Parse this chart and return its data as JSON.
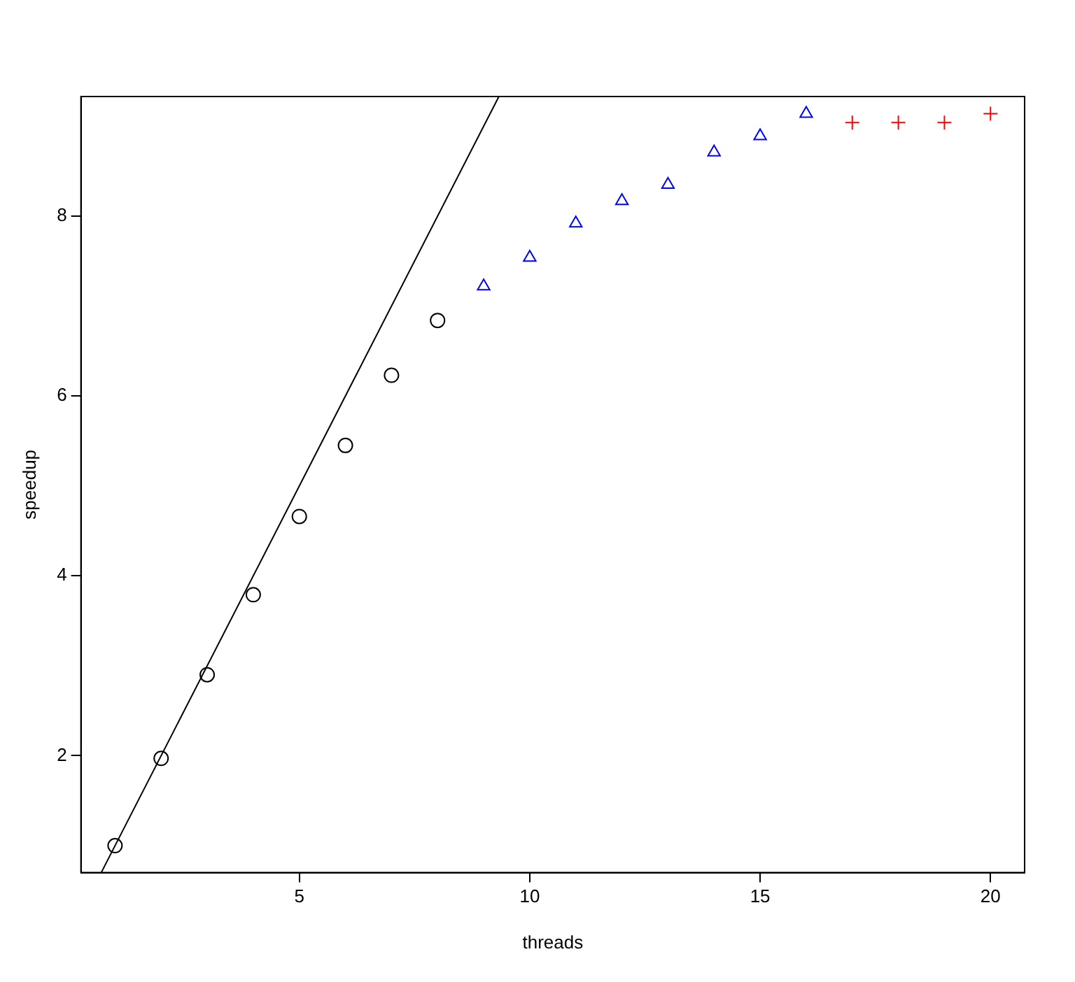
{
  "chart_data": {
    "type": "scatter",
    "xlabel": "threads",
    "ylabel": "speedup",
    "xlim": [
      0.26,
      20.74
    ],
    "ylim": [
      0.7,
      9.33
    ],
    "xticks": [
      5,
      10,
      15,
      20
    ],
    "yticks": [
      2,
      4,
      6,
      8
    ],
    "grid": false,
    "legend": false,
    "series": [
      {
        "type": "line",
        "color": "#000000",
        "marker": "none",
        "line_style": "solid",
        "x": [
          0.7,
          9.33
        ],
        "values": [
          0.7,
          9.33
        ]
      },
      {
        "color": "#000000",
        "marker": "circle",
        "x": [
          1,
          2,
          3,
          4,
          5,
          6,
          7,
          8
        ],
        "values": [
          1.0,
          1.97,
          2.9,
          3.79,
          4.66,
          5.45,
          6.23,
          6.84
        ]
      },
      {
        "color": "#0000ff",
        "marker": "triangle",
        "x": [
          9,
          10,
          11,
          12,
          13,
          14,
          15,
          16
        ],
        "values": [
          7.22,
          7.54,
          7.92,
          8.17,
          8.35,
          8.71,
          8.89,
          9.14
        ]
      },
      {
        "color": "#ff0000",
        "marker": "cross",
        "x": [
          17,
          18,
          19,
          20
        ],
        "values": [
          9.04,
          9.04,
          9.04,
          9.14
        ]
      }
    ]
  }
}
